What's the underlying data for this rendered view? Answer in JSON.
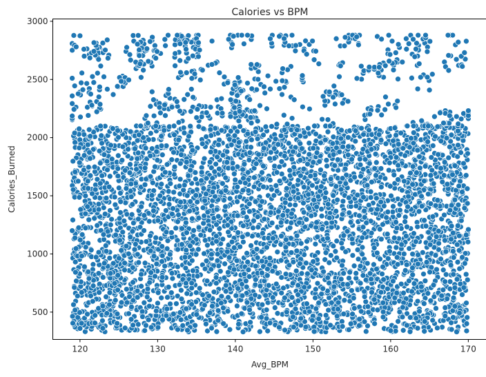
{
  "chart_data": {
    "type": "scatter",
    "title": "Calories vs BPM",
    "xlabel": "Avg_BPM",
    "ylabel": "Calories_Burned",
    "xlim": [
      116.5,
      172.5
    ],
    "ylim": [
      265,
      3020
    ],
    "x_ticks": [
      120,
      130,
      140,
      150,
      160,
      170
    ],
    "y_ticks": [
      500,
      1000,
      1500,
      2000,
      2500,
      3000
    ],
    "grid": false,
    "legend": "none",
    "marker_color": "#1f77b4",
    "marker_edge_color": "#ffffff",
    "point_count_estimate": 5000,
    "x_range_of_points": [
      119,
      170
    ],
    "y_range_of_points": [
      330,
      2880
    ],
    "density_bands": [
      {
        "y_range": [
          330,
          2100
        ],
        "density": "very dense"
      },
      {
        "y_range": [
          2100,
          2880
        ],
        "density": "sparse"
      }
    ],
    "notable_points": [
      {
        "x": 119.0,
        "y": 1200
      },
      {
        "x": 119.5,
        "y": 2780
      },
      {
        "x": 120.5,
        "y": 2760
      },
      {
        "x": 123.5,
        "y": 2840
      },
      {
        "x": 131.0,
        "y": 2790
      },
      {
        "x": 137.0,
        "y": 2830
      },
      {
        "x": 144.5,
        "y": 2850
      },
      {
        "x": 153.0,
        "y": 2850
      },
      {
        "x": 162.0,
        "y": 2850
      },
      {
        "x": 164.5,
        "y": 2880
      },
      {
        "x": 169.5,
        "y": 2730
      },
      {
        "x": 170.0,
        "y": 1210
      },
      {
        "x": 120.0,
        "y": 360
      },
      {
        "x": 141.0,
        "y": 330
      },
      {
        "x": 160.0,
        "y": 340
      },
      {
        "x": 168.5,
        "y": 330
      }
    ]
  }
}
